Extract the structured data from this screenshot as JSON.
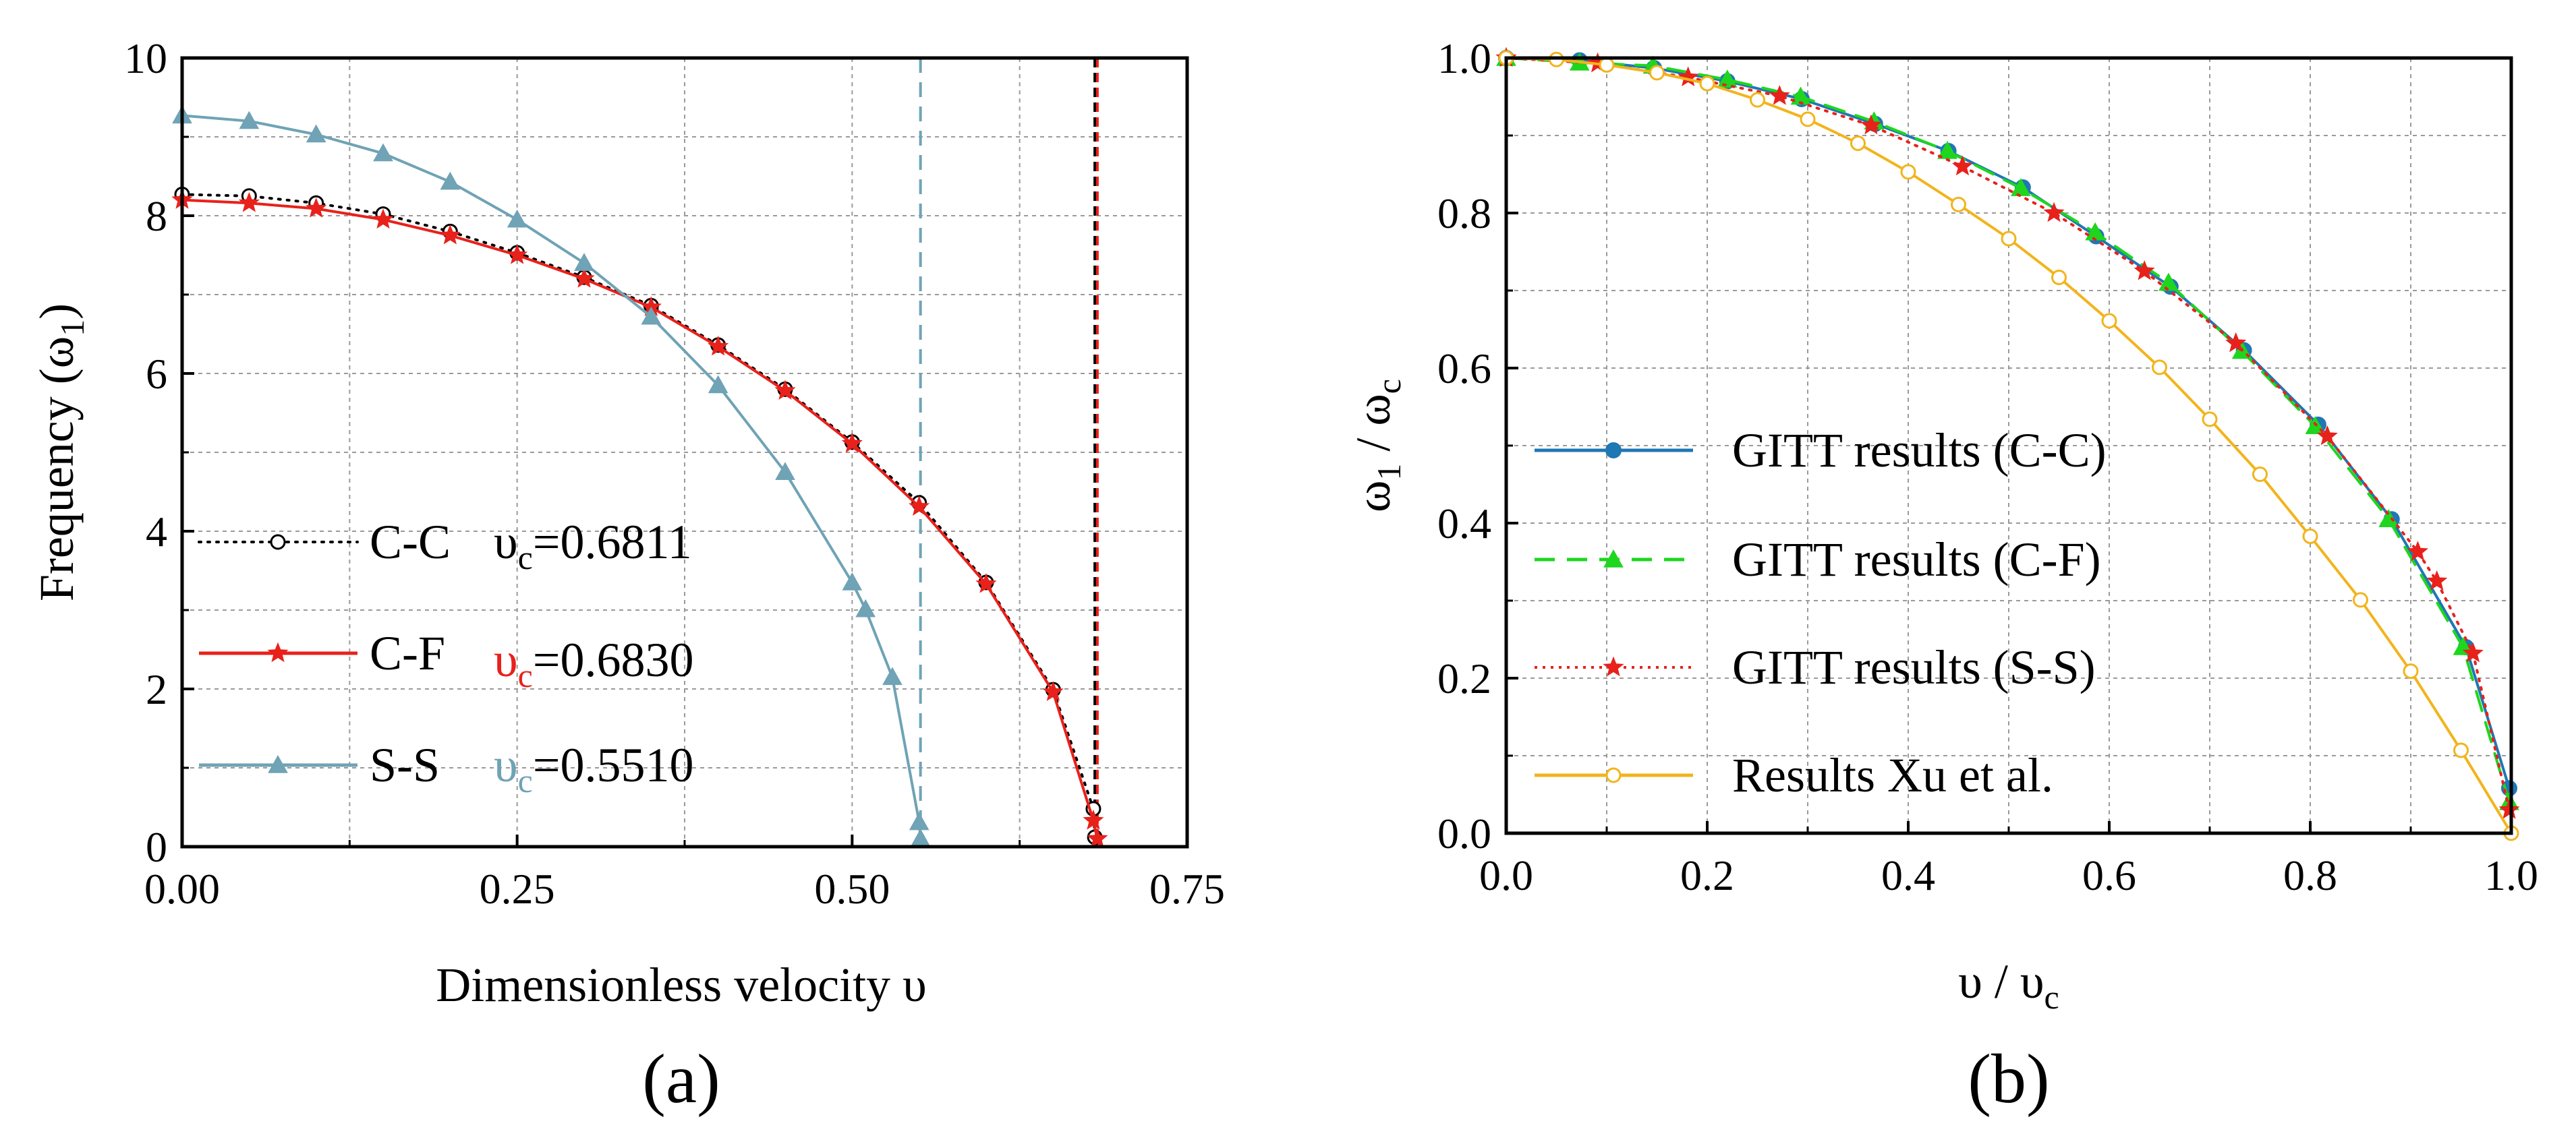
{
  "figure": {
    "panel_a": "(a)",
    "panel_b": "(b)"
  },
  "colors": {
    "cc": "#000000",
    "cf": "#e8211b",
    "ss": "#6fa3b5",
    "gitt_cc": "#1f77b4",
    "gitt_cf": "#1ed61e",
    "gitt_ss": "#e8211b",
    "xu": "#f2b41c"
  },
  "chart_data": [
    {
      "type": "line",
      "title": "",
      "xlabel": "Dimensionless velocity υ",
      "ylabel_main": "Frequency (ω",
      "ylabel_sub": "1",
      "ylabel_close": ")",
      "xlim": [
        0,
        0.75
      ],
      "ylim": [
        0,
        10
      ],
      "xticks": [
        0,
        0.25,
        0.5,
        0.75
      ],
      "xtick_labels": [
        "0.00",
        "0.25",
        "0.50",
        "0.75"
      ],
      "yticks": [
        0,
        2,
        4,
        6,
        8,
        10
      ],
      "ytick_labels": [
        "0",
        "2",
        "4",
        "6",
        "8",
        "10"
      ],
      "grid": true,
      "legend_position": "bottom-left",
      "series": [
        {
          "name": "C-C",
          "critical_label": "υ",
          "critical_sub": "c",
          "critical_value": "=0.6811",
          "critical_velocity": 0.6811,
          "color": "#000000",
          "line": "dotted",
          "marker": "circle-open",
          "x": [
            0,
            0.05,
            0.1,
            0.15,
            0.2,
            0.25,
            0.3,
            0.35,
            0.4,
            0.45,
            0.5,
            0.55,
            0.6,
            0.65,
            0.68,
            0.6811
          ],
          "y": [
            8.27,
            8.25,
            8.16,
            8.02,
            7.8,
            7.53,
            7.22,
            6.86,
            6.36,
            5.8,
            5.13,
            4.36,
            3.35,
            1.99,
            0.48,
            0.12
          ]
        },
        {
          "name": "C-F",
          "critical_label": "υ",
          "critical_sub": "c",
          "critical_value": "=0.6830",
          "critical_velocity": 0.683,
          "color": "#e8211b",
          "line": "solid",
          "marker": "star",
          "x": [
            0,
            0.05,
            0.1,
            0.15,
            0.2,
            0.25,
            0.3,
            0.35,
            0.4,
            0.45,
            0.5,
            0.55,
            0.6,
            0.65,
            0.68,
            0.683
          ],
          "y": [
            8.2,
            8.16,
            8.09,
            7.95,
            7.75,
            7.5,
            7.2,
            6.84,
            6.34,
            5.78,
            5.11,
            4.31,
            3.33,
            1.96,
            0.33,
            0.1
          ]
        },
        {
          "name": "S-S",
          "critical_label": "υ",
          "critical_sub": "c",
          "critical_value": "=0.5510",
          "critical_velocity": 0.551,
          "color": "#6fa3b5",
          "line": "solid",
          "marker": "triangle",
          "x": [
            0,
            0.05,
            0.1,
            0.15,
            0.2,
            0.25,
            0.3,
            0.35,
            0.4,
            0.45,
            0.5,
            0.51,
            0.53,
            0.55,
            0.551
          ],
          "y": [
            9.27,
            9.2,
            9.03,
            8.79,
            8.43,
            7.95,
            7.4,
            6.72,
            5.85,
            4.75,
            3.35,
            3.01,
            2.15,
            0.31,
            0.1
          ]
        }
      ]
    },
    {
      "type": "line",
      "title": "",
      "xlabel_main": "υ / υ",
      "xlabel_sub": "c",
      "ylabel_main": "ω",
      "ylabel_sub1": "1",
      "ylabel_mid": " / ω",
      "ylabel_sub2": "c",
      "xlim": [
        0,
        1
      ],
      "ylim": [
        0,
        1
      ],
      "xticks": [
        0,
        0.2,
        0.4,
        0.6,
        0.8,
        1.0
      ],
      "xtick_labels": [
        "0.0",
        "0.2",
        "0.4",
        "0.6",
        "0.8",
        "1.0"
      ],
      "yticks": [
        0,
        0.2,
        0.4,
        0.6,
        0.8,
        1.0
      ],
      "ytick_labels": [
        "0.0",
        "0.2",
        "0.4",
        "0.6",
        "0.8",
        "1.0"
      ],
      "grid": true,
      "legend_position": "center-left",
      "series": [
        {
          "name": "GITT results (C-C)",
          "color": "#1f77b4",
          "line": "solid",
          "marker": "circle-filled",
          "x": [
            0,
            0.073,
            0.147,
            0.22,
            0.294,
            0.367,
            0.44,
            0.514,
            0.587,
            0.661,
            0.734,
            0.808,
            0.881,
            0.955,
            0.998
          ],
          "y": [
            1.0,
            0.997,
            0.987,
            0.97,
            0.947,
            0.915,
            0.88,
            0.833,
            0.77,
            0.705,
            0.623,
            0.527,
            0.405,
            0.24,
            0.058
          ]
        },
        {
          "name": "GITT  results (C-F)",
          "color": "#1ed61e",
          "line": "dashed",
          "marker": "triangle",
          "x": [
            0,
            0.073,
            0.146,
            0.22,
            0.293,
            0.366,
            0.439,
            0.512,
            0.586,
            0.659,
            0.732,
            0.805,
            0.878,
            0.952,
            0.998
          ],
          "y": [
            1.0,
            0.994,
            0.99,
            0.972,
            0.95,
            0.918,
            0.88,
            0.832,
            0.775,
            0.71,
            0.622,
            0.525,
            0.405,
            0.24,
            0.04
          ]
        },
        {
          "name": "GITT results (S-S)",
          "color": "#e8211b",
          "line": "dotted",
          "marker": "star",
          "x": [
            0,
            0.091,
            0.181,
            0.272,
            0.363,
            0.454,
            0.545,
            0.635,
            0.726,
            0.817,
            0.907,
            0.926,
            0.962,
            0.998
          ],
          "y": [
            1.0,
            0.993,
            0.975,
            0.951,
            0.913,
            0.86,
            0.8,
            0.725,
            0.632,
            0.512,
            0.363,
            0.325,
            0.232,
            0.03
          ]
        },
        {
          "name": " Results Xu et al.",
          "color": "#f2b41c",
          "line": "solid",
          "marker": "circle-open",
          "x": [
            0,
            0.05,
            0.1,
            0.15,
            0.2,
            0.25,
            0.3,
            0.35,
            0.4,
            0.45,
            0.5,
            0.55,
            0.6,
            0.65,
            0.7,
            0.75,
            0.8,
            0.85,
            0.9,
            0.95,
            1.0
          ],
          "y": [
            1.0,
            0.998,
            0.991,
            0.981,
            0.967,
            0.946,
            0.921,
            0.89,
            0.853,
            0.811,
            0.767,
            0.717,
            0.661,
            0.601,
            0.534,
            0.463,
            0.383,
            0.301,
            0.209,
            0.107,
            0.0
          ]
        }
      ]
    }
  ]
}
